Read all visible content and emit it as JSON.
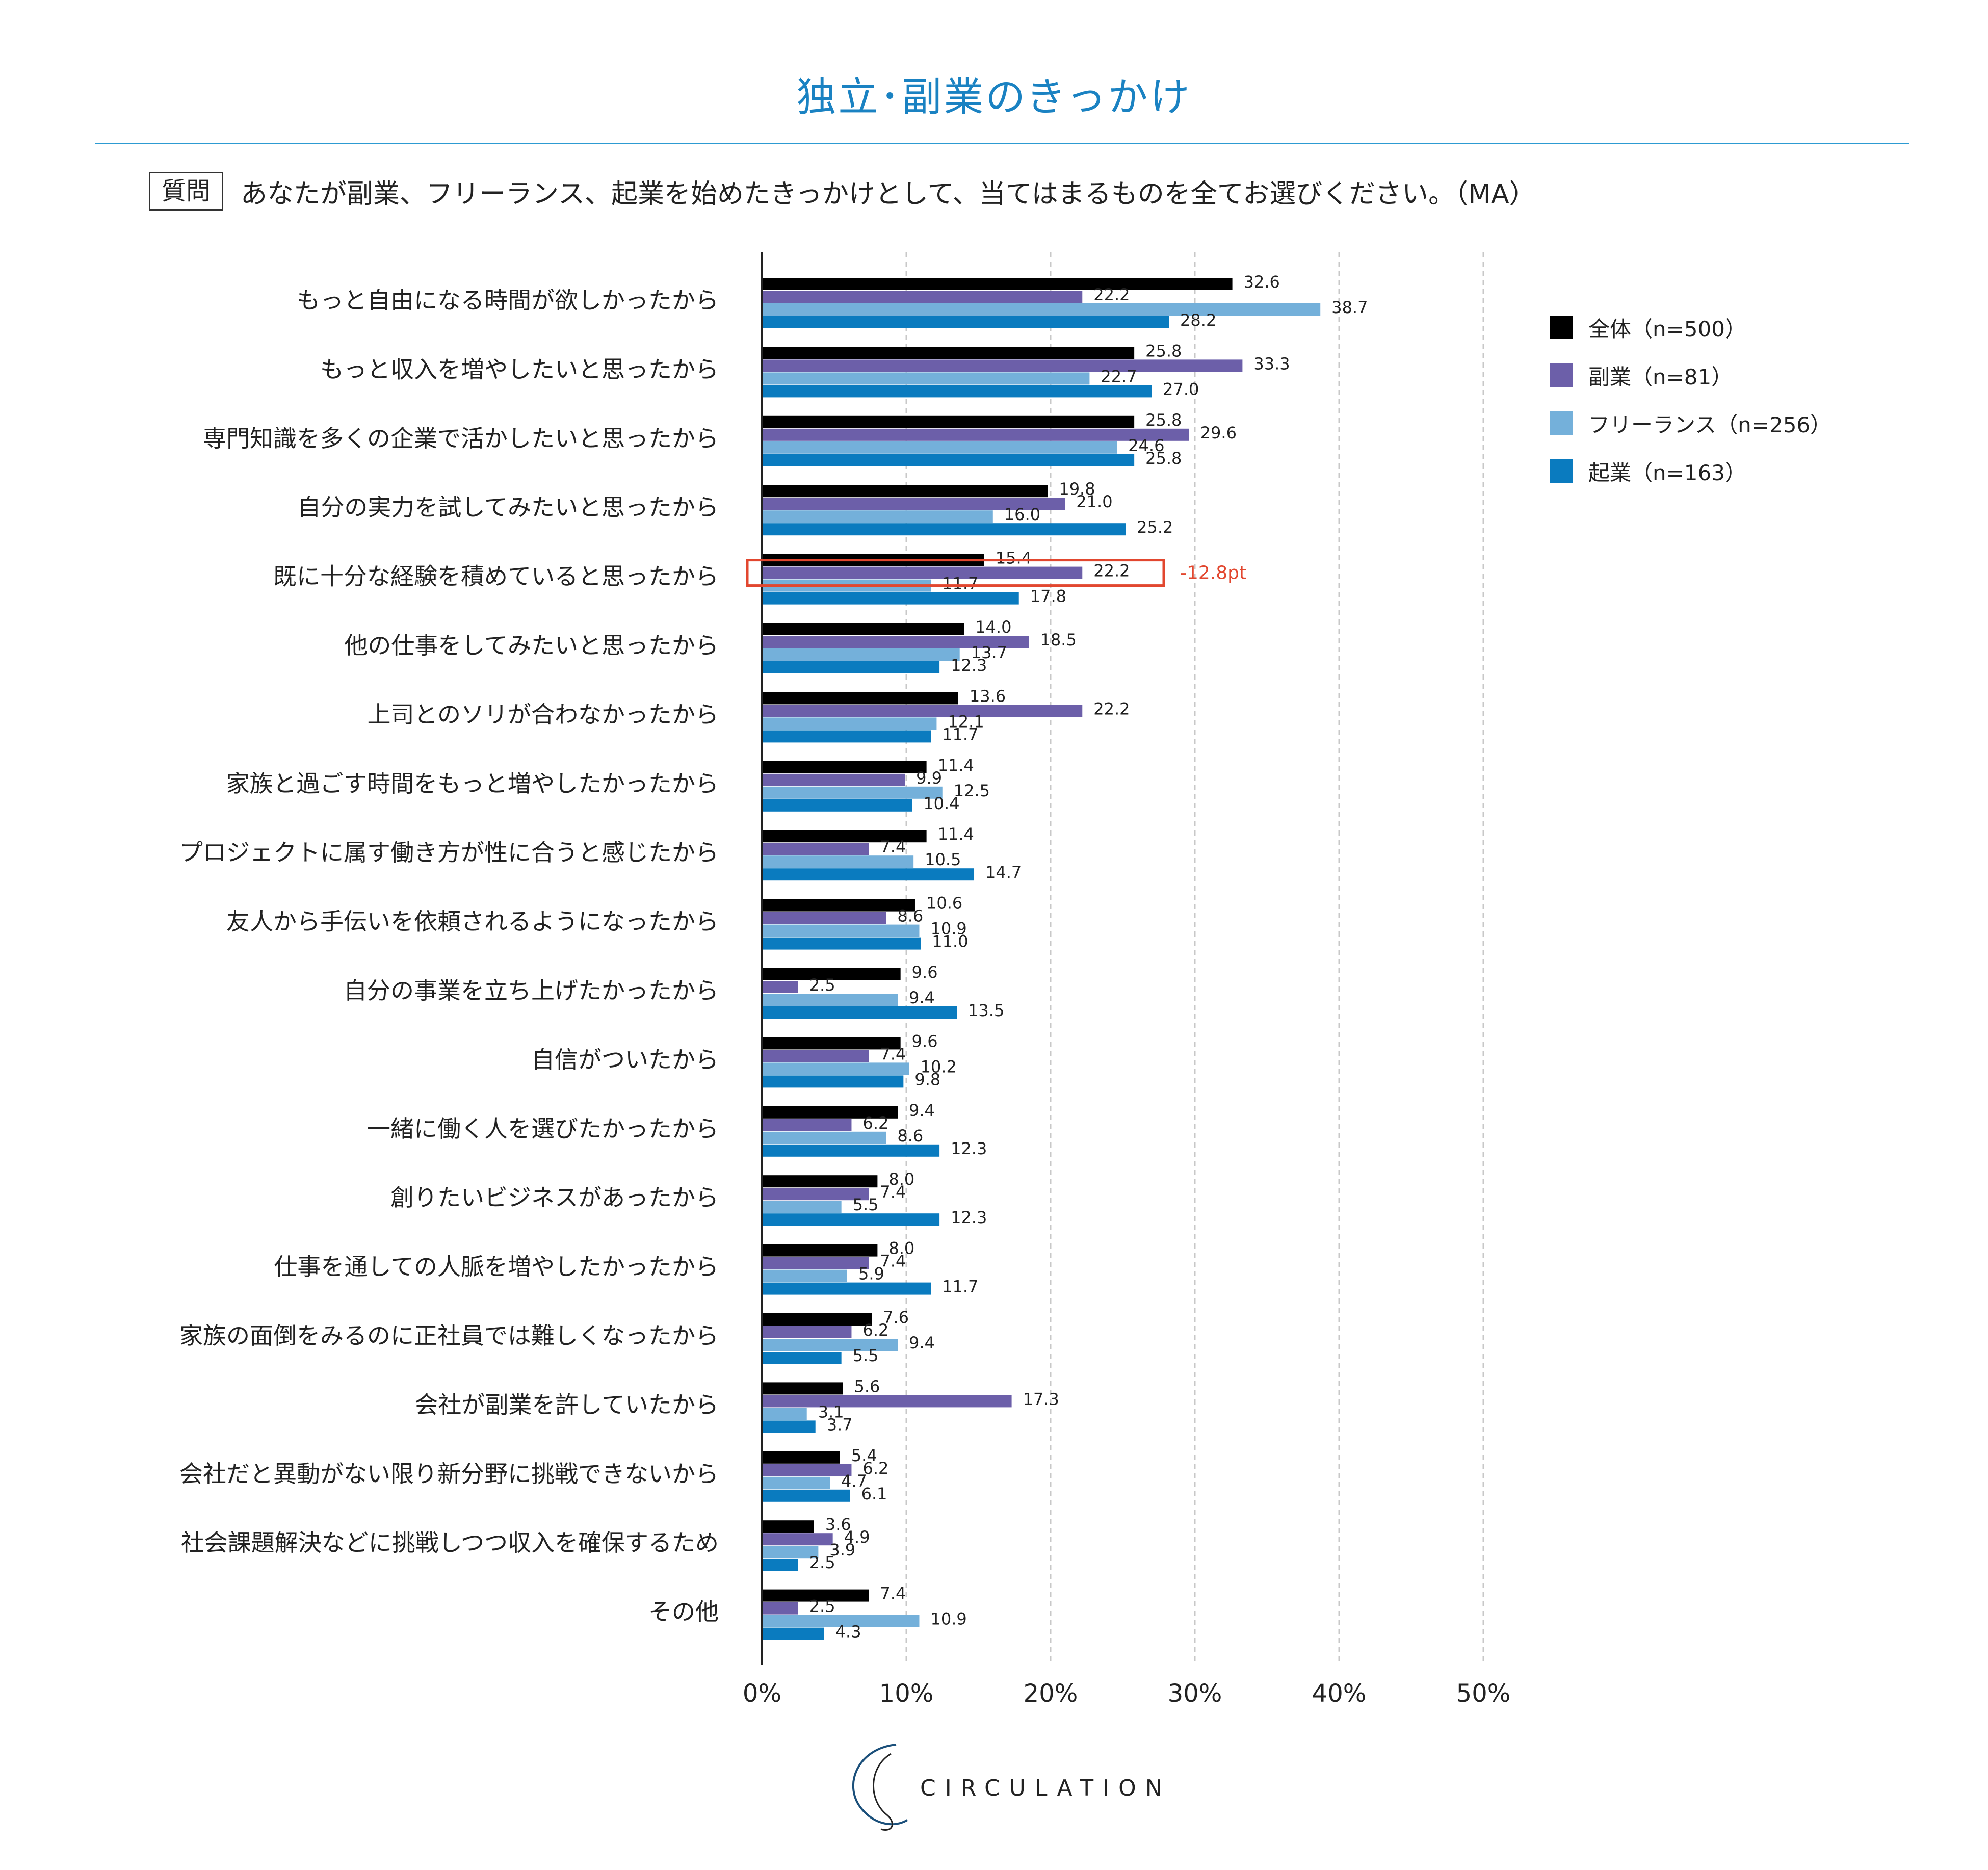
{
  "title": "独立･副業のきっかけ",
  "question": {
    "badge": "質問",
    "text": "あなたが副業、フリーランス、起業を始めたきっかけとして、当てはまるものを全てお選びください。（MA）"
  },
  "colors": {
    "title": "#1a82c2",
    "rule": "#2d9bd2",
    "highlight_box": "#e2472f",
    "annotation": "#e2472f"
  },
  "annotation": {
    "category_index": 4,
    "series_index": 1,
    "text": "-12.8pt"
  },
  "logo": {
    "text": "CIRCULATION"
  },
  "chart_data": {
    "type": "bar",
    "orientation": "horizontal",
    "title": "独立･副業のきっかけ",
    "xlabel": "",
    "ylabel": "",
    "xlim": [
      0,
      50
    ],
    "x_ticks": [
      0,
      10,
      20,
      30,
      40,
      50
    ],
    "x_tick_labels": [
      "0%",
      "10%",
      "20%",
      "30%",
      "40%",
      "50%"
    ],
    "grid": "vertical dashed",
    "legend_position": "top-right",
    "categories": [
      "もっと自由になる時間が欲しかったから",
      "もっと収入を増やしたいと思ったから",
      "専門知識を多くの企業で活かしたいと思ったから",
      "自分の実力を試してみたいと思ったから",
      "既に十分な経験を積めていると思ったから",
      "他の仕事をしてみたいと思ったから",
      "上司とのソリが合わなかったから",
      "家族と過ごす時間をもっと増やしたかったから",
      "プロジェクトに属す働き方が性に合うと感じたから",
      "友人から手伝いを依頼されるようになったから",
      "自分の事業を立ち上げたかったから",
      "自信がついたから",
      "一緒に働く人を選びたかったから",
      "創りたいビジネスがあったから",
      "仕事を通しての人脈を増やしたかったから",
      "家族の面倒をみるのに正社員では難しくなったから",
      "会社が副業を許していたから",
      "会社だと異動がない限り新分野に挑戦できないから",
      "社会課題解決などに挑戦しつつ収入を確保するため",
      "その他"
    ],
    "series": [
      {
        "name": "全体（n=500）",
        "color": "#000000",
        "values": [
          32.6,
          25.8,
          25.8,
          19.8,
          15.4,
          14.0,
          13.6,
          11.4,
          11.4,
          10.6,
          9.6,
          9.6,
          9.4,
          8.0,
          8.0,
          7.6,
          5.6,
          5.4,
          3.6,
          7.4
        ]
      },
      {
        "name": "副業（n=81）",
        "color": "#6c5fa9",
        "values": [
          22.2,
          33.3,
          29.6,
          21.0,
          22.2,
          18.5,
          22.2,
          9.9,
          7.4,
          8.6,
          2.5,
          7.4,
          6.2,
          7.4,
          7.4,
          6.2,
          17.3,
          6.2,
          4.9,
          2.5
        ]
      },
      {
        "name": "フリーランス（n=256）",
        "color": "#74b0da",
        "values": [
          38.7,
          22.7,
          24.6,
          16.0,
          11.7,
          13.7,
          12.1,
          12.5,
          10.5,
          10.9,
          9.4,
          10.2,
          8.6,
          5.5,
          5.9,
          9.4,
          3.1,
          4.7,
          3.9,
          10.9
        ]
      },
      {
        "name": "起業（n=163）",
        "color": "#0a7bbf",
        "values": [
          28.2,
          27.0,
          25.8,
          25.2,
          17.8,
          12.3,
          11.7,
          10.4,
          14.7,
          11.0,
          13.5,
          9.8,
          12.3,
          12.3,
          11.7,
          5.5,
          3.7,
          6.1,
          2.5,
          4.3
        ]
      }
    ]
  }
}
